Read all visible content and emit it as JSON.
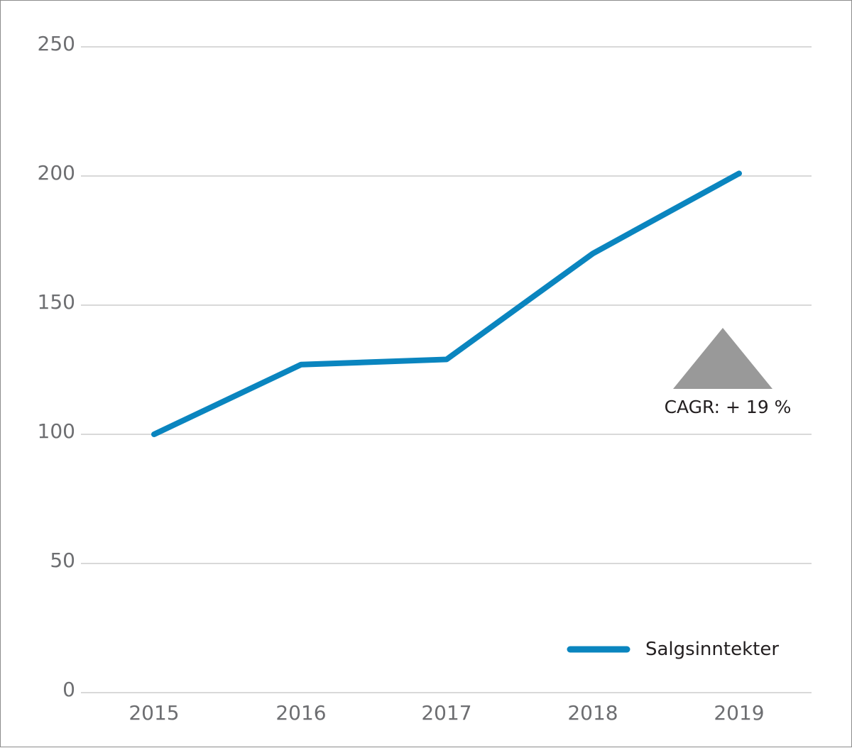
{
  "chart_data": {
    "type": "line",
    "x": [
      "2015",
      "2016",
      "2017",
      "2018",
      "2019"
    ],
    "series": [
      {
        "name": "Salgsinntekter",
        "values": [
          100,
          127,
          129,
          170,
          201
        ],
        "color": "#0a85bf"
      }
    ],
    "ylim": [
      0,
      250
    ],
    "yticks": [
      0,
      50,
      100,
      150,
      200,
      250
    ],
    "grid": true,
    "legend": {
      "position": "bottom-right"
    },
    "annotation": {
      "text": "CAGR: + 19 %",
      "icon": "up-triangle-icon",
      "color": "#999999"
    },
    "colors": {
      "line": "#0a85bf",
      "grid": "#d9d9d9",
      "tick_text": "#6d6e71",
      "frame": "#8c8c8c"
    }
  }
}
